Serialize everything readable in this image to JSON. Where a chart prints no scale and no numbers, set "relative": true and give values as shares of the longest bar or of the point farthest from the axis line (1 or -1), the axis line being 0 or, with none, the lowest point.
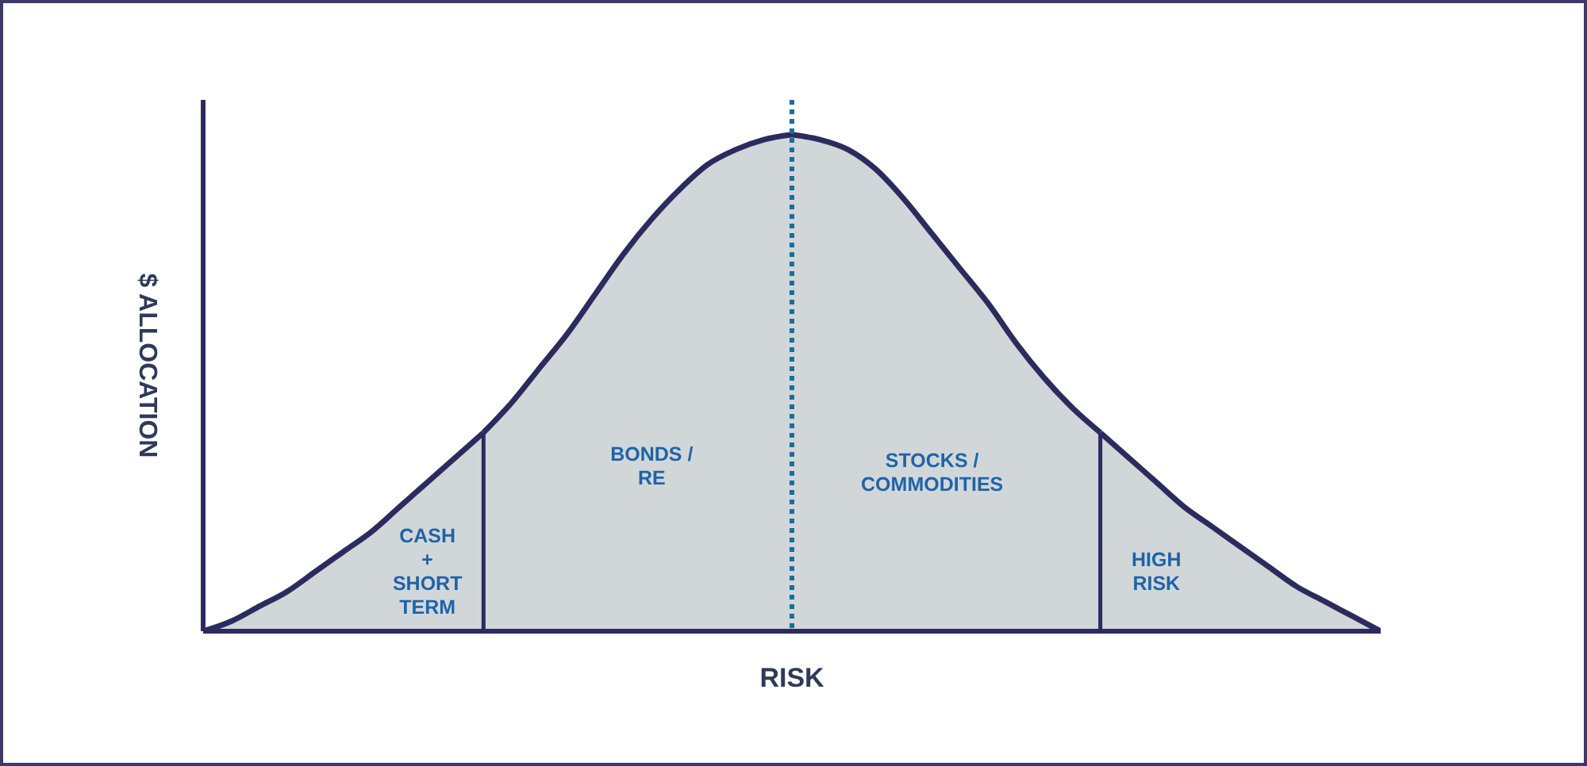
{
  "chart_data": {
    "type": "area",
    "relative": true,
    "xlabel": "RISK",
    "ylabel": "$ ALLOCATION",
    "categories": [
      null,
      null,
      null,
      null,
      null,
      null,
      null,
      null,
      null,
      null,
      null,
      null,
      null,
      null,
      null,
      null,
      null,
      null,
      null,
      null,
      null,
      null,
      null,
      null,
      null,
      null,
      null,
      null,
      null,
      null,
      null,
      null,
      null,
      null,
      null,
      null,
      null,
      null,
      null,
      null,
      null,
      null,
      null
    ],
    "series": [
      {
        "name": "CASH\n+\nSHORT\nTERM",
        "color": "#d1d7d9",
        "values": [
          0,
          0.02,
          0.05,
          0.08,
          0.12,
          0.16,
          0.2,
          0.25,
          0.3,
          0.35,
          0.4,
          null,
          null,
          null,
          null,
          null,
          null,
          null,
          null,
          null,
          null,
          null,
          null,
          null,
          null,
          null,
          null,
          null,
          null,
          null,
          null,
          null,
          null,
          null,
          null,
          null,
          null,
          null,
          null,
          null,
          null,
          null,
          null
        ]
      },
      {
        "name": "BONDS /\nRE",
        "color": "#d1d7d9",
        "values": [
          null,
          null,
          null,
          null,
          null,
          null,
          null,
          null,
          null,
          null,
          0.4,
          0.46,
          0.53,
          0.6,
          0.68,
          0.76,
          0.83,
          0.89,
          0.94,
          0.97,
          0.99,
          1,
          null,
          null,
          null,
          null,
          null,
          null,
          null,
          null,
          null,
          null,
          null,
          null,
          null,
          null,
          null,
          null,
          null,
          null,
          null,
          null,
          null
        ]
      },
      {
        "name": "STOCKS /\nCOMMODITIES",
        "color": "#d1d7d9",
        "values": [
          null,
          null,
          null,
          null,
          null,
          null,
          null,
          null,
          null,
          null,
          null,
          null,
          null,
          null,
          null,
          null,
          null,
          null,
          null,
          null,
          null,
          1,
          0.99,
          0.97,
          0.93,
          0.87,
          0.8,
          0.73,
          0.66,
          0.58,
          0.51,
          0.45,
          0.4,
          null,
          null,
          null,
          null,
          null,
          null,
          null,
          null,
          null,
          null
        ]
      },
      {
        "name": "HIGH\nRISK",
        "color": "#d1d7d9",
        "values": [
          null,
          null,
          null,
          null,
          null,
          null,
          null,
          null,
          null,
          null,
          null,
          null,
          null,
          null,
          null,
          null,
          null,
          null,
          null,
          null,
          null,
          null,
          null,
          null,
          null,
          null,
          null,
          null,
          null,
          null,
          null,
          null,
          0.4,
          0.35,
          0.3,
          0.25,
          0.21,
          0.17,
          0.13,
          0.09,
          0.06,
          0.03,
          0
        ]
      }
    ]
  }
}
